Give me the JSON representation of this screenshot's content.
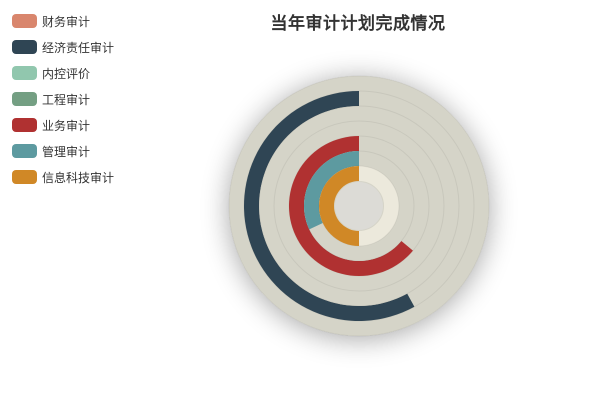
{
  "chart_data": {
    "type": "pie",
    "title": "当年审计计划完成情况",
    "legend_position": "top-left",
    "series": [
      {
        "name": "财务审计",
        "value": 0,
        "color": "#d9866d"
      },
      {
        "name": "经济责任审计",
        "value": 58,
        "color": "#2f4554"
      },
      {
        "name": "内控评价",
        "value": 0,
        "color": "#91c7ae"
      },
      {
        "name": "工程审计",
        "value": 0,
        "color": "#749f83"
      },
      {
        "name": "业务审计",
        "value": 64,
        "color": "#b03131"
      },
      {
        "name": "管理审计",
        "value": 32,
        "color": "#5d9aa0"
      },
      {
        "name": "信息科技审计",
        "value": 50,
        "color": "#d08826"
      }
    ],
    "track_color": "#d5d4c8",
    "inner_track_color": "#ece9dc"
  }
}
